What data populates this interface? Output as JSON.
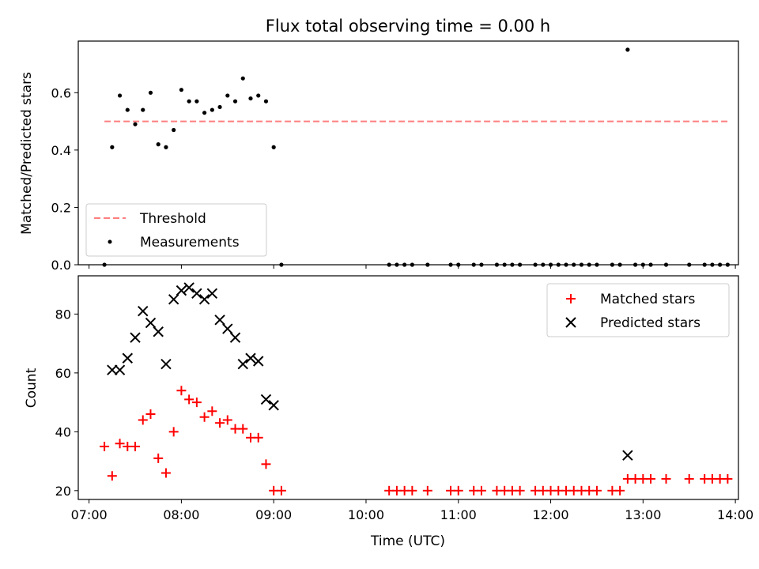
{
  "colors": {
    "threshold": "#ff7f7f",
    "measurements": "#000000",
    "matched": "#ff0000",
    "predicted": "#000000"
  },
  "chart_data": [
    {
      "type": "scatter",
      "title": "Flux total observing time = 0.00 h",
      "xlabel": "",
      "ylabel": "Matched/Predicted stars",
      "xlim": [
        "07:00",
        "14:00"
      ],
      "ylim": [
        0,
        0.78
      ],
      "yticks": [
        0.0,
        0.2,
        0.4,
        0.6
      ],
      "ytick_labels": [
        "0.0",
        "0.2",
        "0.4",
        "0.6"
      ],
      "legend": {
        "placement": "lower-left",
        "entries": [
          {
            "label": "Threshold",
            "style": "dashed-line"
          },
          {
            "label": "Measurements",
            "style": "dot"
          }
        ]
      },
      "series": [
        {
          "name": "Threshold",
          "type": "line",
          "x": [
            "07:10",
            "13:55"
          ],
          "y": [
            0.5,
            0.5
          ]
        },
        {
          "name": "Measurements",
          "type": "scatter",
          "x": [
            "07:10",
            "07:15",
            "07:20",
            "07:25",
            "07:30",
            "07:35",
            "07:40",
            "07:45",
            "07:50",
            "07:55",
            "08:00",
            "08:05",
            "08:10",
            "08:15",
            "08:20",
            "08:25",
            "08:30",
            "08:35",
            "08:40",
            "08:45",
            "08:50",
            "08:55",
            "09:00",
            "09:05",
            "10:15",
            "10:20",
            "10:25",
            "10:30",
            "10:40",
            "10:55",
            "11:00",
            "11:10",
            "11:15",
            "11:25",
            "11:30",
            "11:35",
            "11:40",
            "11:50",
            "11:55",
            "12:00",
            "12:05",
            "12:10",
            "12:15",
            "12:20",
            "12:25",
            "12:30",
            "12:40",
            "12:45",
            "12:50",
            "12:55",
            "13:00",
            "13:05",
            "13:15",
            "13:30",
            "13:40",
            "13:45",
            "13:50",
            "13:55"
          ],
          "y": [
            0.0,
            0.41,
            0.59,
            0.54,
            0.49,
            0.54,
            0.6,
            0.42,
            0.41,
            0.47,
            0.61,
            0.57,
            0.57,
            0.53,
            0.54,
            0.55,
            0.59,
            0.57,
            0.65,
            0.58,
            0.59,
            0.57,
            0.41,
            0.0,
            0.0,
            0.0,
            0.0,
            0.0,
            0.0,
            0.0,
            0.0,
            0.0,
            0.0,
            0.0,
            0.0,
            0.0,
            0.0,
            0.0,
            0.0,
            0.0,
            0.0,
            0.0,
            0.0,
            0.0,
            0.0,
            0.0,
            0.0,
            0.0,
            0.75,
            0.0,
            0.0,
            0.0,
            0.0,
            0.0,
            0.0,
            0.0,
            0.0,
            0.0
          ]
        }
      ]
    },
    {
      "type": "scatter",
      "title": "",
      "xlabel": "Time (UTC)",
      "ylabel": "Count",
      "xlim": [
        "07:00",
        "14:00"
      ],
      "ylim": [
        17,
        93
      ],
      "xticks": [
        "07:00",
        "08:00",
        "09:00",
        "10:00",
        "11:00",
        "12:00",
        "13:00",
        "14:00"
      ],
      "yticks": [
        20,
        40,
        60,
        80
      ],
      "ytick_labels": [
        "20",
        "40",
        "60",
        "80"
      ],
      "legend": {
        "placement": "top-right",
        "entries": [
          {
            "label": "Matched stars",
            "style": "plus"
          },
          {
            "label": "Predicted stars",
            "style": "x"
          }
        ]
      },
      "series": [
        {
          "name": "Matched stars",
          "marker": "plus",
          "x": [
            "07:10",
            "07:15",
            "07:20",
            "07:25",
            "07:30",
            "07:35",
            "07:40",
            "07:45",
            "07:50",
            "07:55",
            "08:00",
            "08:05",
            "08:10",
            "08:15",
            "08:20",
            "08:25",
            "08:30",
            "08:35",
            "08:40",
            "08:45",
            "08:50",
            "08:55",
            "09:00",
            "09:05",
            "10:15",
            "10:20",
            "10:25",
            "10:30",
            "10:40",
            "10:55",
            "11:00",
            "11:10",
            "11:15",
            "11:25",
            "11:30",
            "11:35",
            "11:40",
            "11:50",
            "11:55",
            "12:00",
            "12:05",
            "12:10",
            "12:15",
            "12:20",
            "12:25",
            "12:30",
            "12:40",
            "12:45",
            "12:50",
            "12:55",
            "13:00",
            "13:05",
            "13:15",
            "13:30",
            "13:40",
            "13:45",
            "13:50",
            "13:55"
          ],
          "y": [
            35,
            25,
            36,
            35,
            35,
            44,
            46,
            31,
            26,
            40,
            54,
            51,
            50,
            45,
            47,
            43,
            44,
            41,
            41,
            38,
            38,
            29,
            20,
            20,
            20,
            20,
            20,
            20,
            20,
            20,
            20,
            20,
            20,
            20,
            20,
            20,
            20,
            20,
            20,
            20,
            20,
            20,
            20,
            20,
            20,
            20,
            20,
            20,
            24,
            24,
            24,
            24,
            24,
            24,
            24,
            24,
            24,
            24
          ]
        },
        {
          "name": "Predicted stars",
          "marker": "x",
          "x": [
            "07:15",
            "07:20",
            "07:25",
            "07:30",
            "07:35",
            "07:40",
            "07:45",
            "07:50",
            "07:55",
            "08:00",
            "08:05",
            "08:10",
            "08:15",
            "08:20",
            "08:25",
            "08:30",
            "08:35",
            "08:40",
            "08:45",
            "08:50",
            "08:55",
            "09:00",
            "12:50"
          ],
          "y": [
            61,
            61,
            65,
            72,
            81,
            77,
            74,
            63,
            85,
            88,
            89,
            87,
            85,
            87,
            78,
            75,
            72,
            63,
            65,
            64,
            51,
            49,
            32
          ]
        }
      ]
    }
  ]
}
